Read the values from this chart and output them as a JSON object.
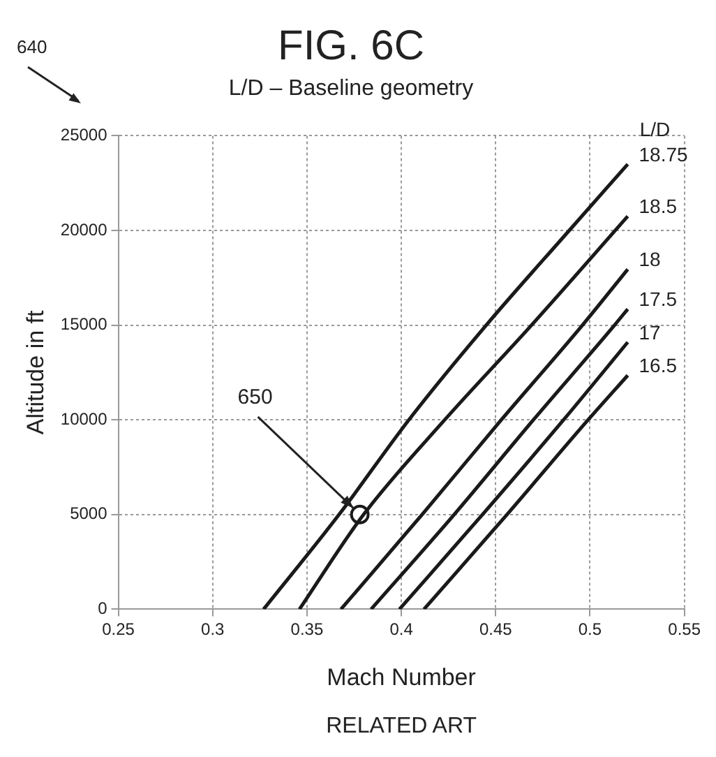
{
  "chart_data": {
    "type": "line",
    "title": "FIG. 6C",
    "subtitle": "L/D – Baseline geometry",
    "xlabel": "Mach Number",
    "ylabel": "Altitude in ft",
    "legend_title": "L/D",
    "xlim": [
      0.25,
      0.55
    ],
    "xticks": [
      0.25,
      0.3,
      0.35,
      0.4,
      0.45,
      0.5,
      0.55
    ],
    "ylim": [
      0,
      25000
    ],
    "yticks": [
      0,
      5000,
      10000,
      15000,
      20000,
      25000
    ],
    "grid": true,
    "legend": false,
    "marker": "none",
    "line_style": "solid",
    "series": [
      {
        "name": "18.75",
        "color": "#1a1a1a",
        "x": [
          0.327,
          0.367,
          0.404,
          0.445,
          0.489,
          0.52
        ],
        "values": [
          0,
          5000,
          10000,
          15000,
          20000,
          23500
        ]
      },
      {
        "name": "18.5",
        "color": "#1a1a1a",
        "x": [
          0.346,
          0.38,
          0.423,
          0.469,
          0.52
        ],
        "values": [
          0,
          5000,
          10000,
          15000,
          20750
        ]
      },
      {
        "name": "18",
        "color": "#1a1a1a",
        "x": [
          0.368,
          0.411,
          0.453,
          0.496,
          0.52
        ],
        "values": [
          0,
          5000,
          10000,
          15000,
          17950
        ]
      },
      {
        "name": "17.5",
        "color": "#1a1a1a",
        "x": [
          0.384,
          0.428,
          0.47,
          0.513,
          0.52
        ],
        "values": [
          0,
          5000,
          10000,
          15000,
          15850
        ]
      },
      {
        "name": "17",
        "color": "#1a1a1a",
        "x": [
          0.399,
          0.443,
          0.486,
          0.52
        ],
        "values": [
          0,
          5000,
          10000,
          14100
        ]
      },
      {
        "name": "16.5",
        "color": "#1a1a1a",
        "x": [
          0.412,
          0.456,
          0.499,
          0.52
        ],
        "values": [
          0,
          5000,
          10000,
          12350
        ]
      },
      {
        "type": "scatter",
        "color": "#1a1a1a",
        "marker": "circle",
        "x": [
          0.378
        ],
        "values": [
          5000
        ]
      }
    ],
    "annotations": [
      "640",
      {
        "text": "650",
        "x": 0.378,
        "y": 5000
      },
      "RELATED ART"
    ]
  }
}
